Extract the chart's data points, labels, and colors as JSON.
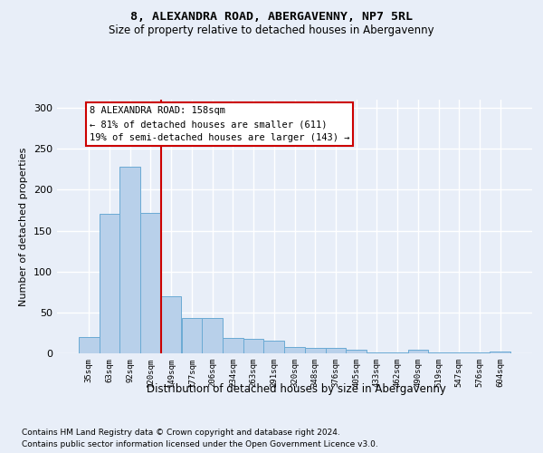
{
  "title": "8, ALEXANDRA ROAD, ABERGAVENNY, NP7 5RL",
  "subtitle": "Size of property relative to detached houses in Abergavenny",
  "xlabel": "Distribution of detached houses by size in Abergavenny",
  "ylabel": "Number of detached properties",
  "categories": [
    "35sqm",
    "63sqm",
    "92sqm",
    "120sqm",
    "149sqm",
    "177sqm",
    "206sqm",
    "234sqm",
    "263sqm",
    "291sqm",
    "320sqm",
    "348sqm",
    "376sqm",
    "405sqm",
    "433sqm",
    "462sqm",
    "490sqm",
    "519sqm",
    "547sqm",
    "576sqm",
    "604sqm"
  ],
  "values": [
    20,
    170,
    228,
    172,
    70,
    43,
    43,
    19,
    18,
    16,
    8,
    7,
    7,
    4,
    1,
    1,
    4,
    1,
    1,
    1,
    2
  ],
  "bar_color": "#b8d0ea",
  "bar_edge_color": "#6aaad4",
  "red_line_x": 3.5,
  "annotation_line1": "8 ALEXANDRA ROAD: 158sqm",
  "annotation_line2": "← 81% of detached houses are smaller (611)",
  "annotation_line3": "19% of semi-detached houses are larger (143) →",
  "annotation_box_color": "#ffffff",
  "annotation_box_edge": "#cc0000",
  "ylim": [
    0,
    310
  ],
  "yticks": [
    0,
    50,
    100,
    150,
    200,
    250,
    300
  ],
  "footer1": "Contains HM Land Registry data © Crown copyright and database right 2024.",
  "footer2": "Contains public sector information licensed under the Open Government Licence v3.0.",
  "background_color": "#e8eef8",
  "grid_color": "#ffffff"
}
